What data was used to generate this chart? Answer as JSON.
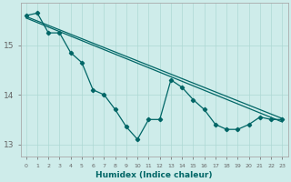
{
  "xlabel": "Humidex (Indice chaleur)",
  "background_color": "#ceecea",
  "grid_color": "#aed8d4",
  "line_color": "#006666",
  "xlim": [
    -0.5,
    23.5
  ],
  "ylim": [
    12.75,
    15.85
  ],
  "yticks": [
    13,
    14,
    15
  ],
  "xticks": [
    0,
    1,
    2,
    3,
    4,
    5,
    6,
    7,
    8,
    9,
    10,
    11,
    12,
    13,
    14,
    15,
    16,
    17,
    18,
    19,
    20,
    21,
    22,
    23
  ],
  "line1_x": [
    0,
    1,
    2,
    3,
    4,
    5,
    6,
    7,
    8,
    9,
    10,
    11,
    12,
    13,
    14,
    15,
    16,
    17,
    18,
    19,
    20,
    21,
    22,
    23
  ],
  "line1_y": [
    15.6,
    15.65,
    15.25,
    15.25,
    14.85,
    14.65,
    14.1,
    14.0,
    13.7,
    13.35,
    13.1,
    13.5,
    13.5,
    14.3,
    14.15,
    13.9,
    13.7,
    13.4,
    13.3,
    13.3,
    13.4,
    13.55,
    13.5,
    13.5
  ],
  "line2_x": [
    0,
    23
  ],
  "line2_y": [
    15.58,
    13.5
  ],
  "line3_x": [
    0,
    2,
    23
  ],
  "line3_y": [
    15.58,
    15.32,
    13.48
  ],
  "marker_x": [
    0,
    1,
    2,
    3,
    4,
    5,
    6,
    7,
    8,
    9,
    10,
    11,
    12,
    13,
    14,
    15,
    16,
    17,
    18,
    19,
    20,
    21,
    22,
    23
  ],
  "marker_y": [
    15.6,
    15.65,
    15.25,
    15.25,
    14.85,
    14.65,
    14.1,
    14.0,
    13.7,
    13.35,
    13.1,
    13.5,
    13.5,
    14.3,
    14.15,
    13.9,
    13.7,
    13.4,
    13.3,
    13.3,
    13.4,
    13.55,
    13.5,
    13.5
  ]
}
